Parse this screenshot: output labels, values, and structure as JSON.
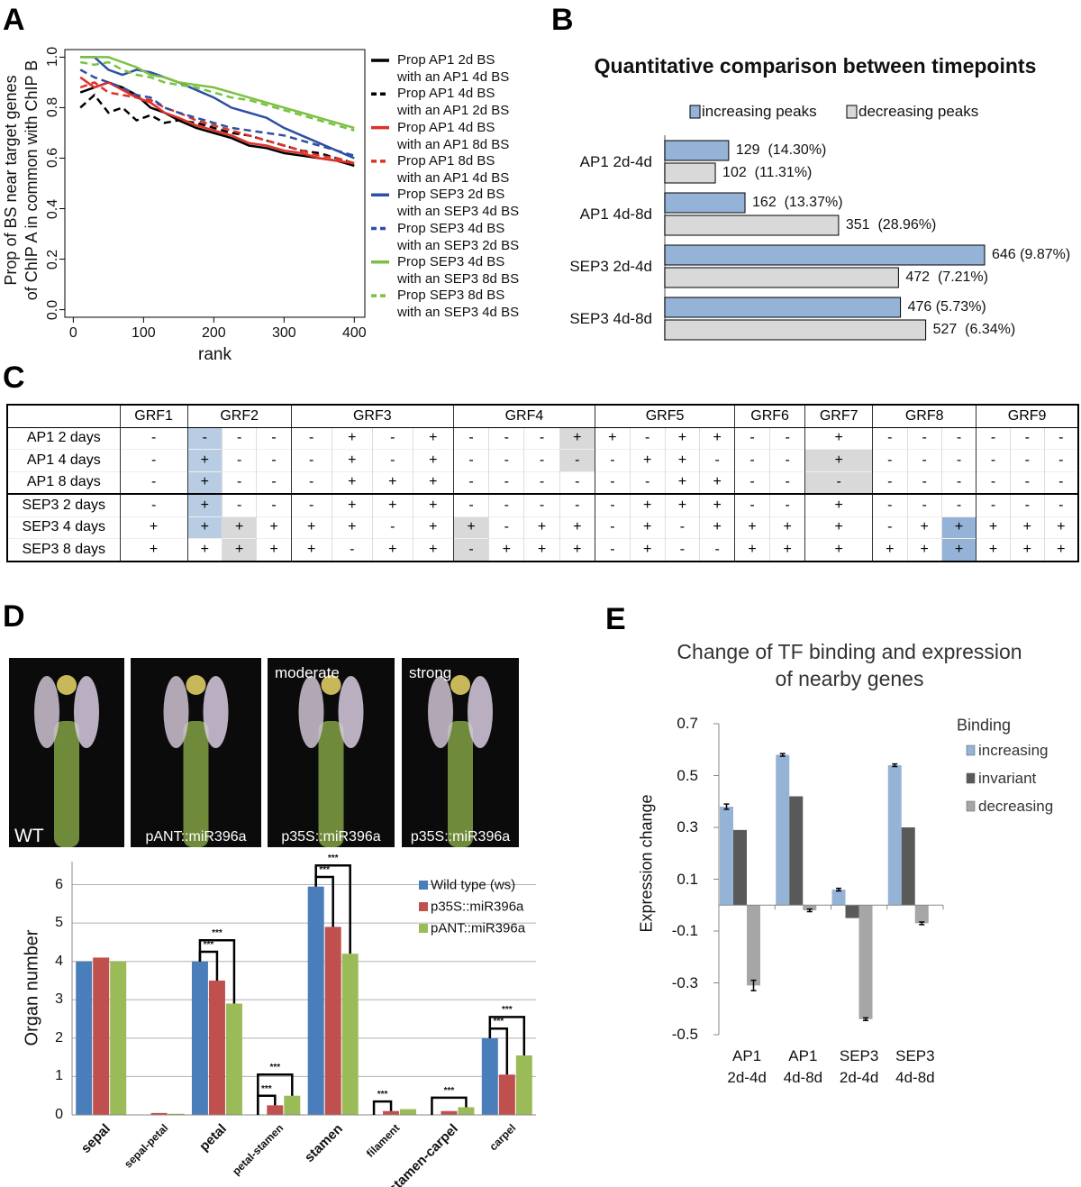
{
  "panel_labels": [
    "A",
    "B",
    "C",
    "D",
    "E"
  ],
  "chart_data": [
    {
      "type": "line",
      "xlabel": "rank",
      "ylabel": "Prop of BS near target genes\nof ChIP A in common with ChIP B",
      "x": [
        10,
        30,
        50,
        70,
        90,
        110,
        130,
        150,
        175,
        200,
        225,
        250,
        275,
        300,
        325,
        350,
        375,
        400
      ],
      "xlim": [
        -12,
        415
      ],
      "xticks": [
        0,
        100,
        200,
        300,
        400
      ],
      "ylim": [
        -0.03,
        1.03
      ],
      "yticks": [
        {
          "value": 0,
          "label": "0.0"
        },
        0.2,
        0.4,
        0.6,
        0.8,
        {
          "value": 1,
          "label": "1.0"
        }
      ],
      "series": [
        {
          "name": "Prop AP1 2d BS\nwith an AP1 4d BS",
          "color": "#000000",
          "dash": false,
          "values": [
            0.86,
            0.88,
            0.9,
            0.88,
            0.85,
            0.8,
            0.78,
            0.75,
            0.72,
            0.7,
            0.68,
            0.65,
            0.64,
            0.62,
            0.61,
            0.6,
            0.59,
            0.57
          ]
        },
        {
          "name": "Prop AP1 4d BS\nwith an AP1 2d BS",
          "color": "#000000",
          "dash": true,
          "values": [
            0.8,
            0.85,
            0.78,
            0.8,
            0.75,
            0.77,
            0.74,
            0.75,
            0.74,
            0.72,
            0.7,
            0.69,
            0.67,
            0.65,
            0.63,
            0.62,
            0.6,
            0.58
          ]
        },
        {
          "name": "Prop AP1 4d BS\nwith an AP1 8d BS",
          "color": "#e0302a",
          "dash": false,
          "values": [
            0.92,
            0.88,
            0.9,
            0.87,
            0.84,
            0.82,
            0.78,
            0.76,
            0.73,
            0.71,
            0.69,
            0.66,
            0.65,
            0.63,
            0.62,
            0.6,
            0.59,
            0.58
          ]
        },
        {
          "name": "Prop AP1 8d BS\nwith an AP1 4d BS",
          "color": "#e0302a",
          "dash": true,
          "values": [
            0.88,
            0.9,
            0.86,
            0.85,
            0.84,
            0.83,
            0.8,
            0.78,
            0.75,
            0.73,
            0.71,
            0.69,
            0.67,
            0.65,
            0.63,
            0.61,
            0.6,
            0.58
          ]
        },
        {
          "name": "Prop SEP3 2d BS\nwith an SEP3 4d BS",
          "color": "#2e4fa3",
          "dash": false,
          "values": [
            1.0,
            1.0,
            0.95,
            0.93,
            0.95,
            0.94,
            0.92,
            0.9,
            0.87,
            0.84,
            0.8,
            0.78,
            0.76,
            0.72,
            0.69,
            0.66,
            0.63,
            0.6
          ]
        },
        {
          "name": "Prop SEP3 4d BS\nwith an SEP3 2d BS",
          "color": "#2e4fa3",
          "dash": true,
          "values": [
            0.95,
            0.92,
            0.9,
            0.88,
            0.85,
            0.84,
            0.8,
            0.78,
            0.76,
            0.74,
            0.72,
            0.71,
            0.7,
            0.69,
            0.67,
            0.65,
            0.63,
            0.61
          ]
        },
        {
          "name": "Prop SEP3 4d BS\nwith an SEP3 8d BS",
          "color": "#7ac143",
          "dash": false,
          "values": [
            1.0,
            1.0,
            1.0,
            0.98,
            0.96,
            0.93,
            0.92,
            0.9,
            0.89,
            0.88,
            0.86,
            0.84,
            0.82,
            0.8,
            0.78,
            0.76,
            0.74,
            0.72
          ]
        },
        {
          "name": "Prop SEP3 8d BS\nwith an SEP3 4d BS",
          "color": "#7ac143",
          "dash": true,
          "values": [
            0.98,
            0.97,
            0.98,
            0.95,
            0.93,
            0.92,
            0.9,
            0.89,
            0.88,
            0.86,
            0.84,
            0.83,
            0.81,
            0.79,
            0.77,
            0.75,
            0.73,
            0.71
          ]
        }
      ]
    },
    {
      "type": "hbar",
      "title": "Quantitative comparison between timepoints",
      "categories": [
        "AP1 2d-4d",
        "AP1 4d-8d",
        "SEP3 2d-4d",
        "SEP3 4d-8d"
      ],
      "series": [
        {
          "name": "increasing peaks",
          "color": "#95b3d7",
          "values": [
            129,
            162,
            646,
            476
          ],
          "value_labels": [
            "129  (14.30%)",
            "162  (13.37%)",
            "646 (9.87%)",
            "476 (5.73%)"
          ]
        },
        {
          "name": "decreasing peaks",
          "color": "#d9d9d9",
          "values": [
            102,
            351,
            472,
            527
          ],
          "value_labels": [
            "102  (11.31%)",
            "351  (28.96%)",
            "472  (7.21%)",
            "527  (6.34%)"
          ]
        }
      ]
    },
    {
      "type": "bar",
      "ylabel": "Organ number",
      "categories": [
        "sepal",
        "sepal-petal",
        "petal",
        "petal-stamen",
        "stamen",
        "filament",
        "stamen-carpel",
        "carpel"
      ],
      "ylim": [
        0,
        6.6
      ],
      "yticks": [
        0,
        1,
        2,
        3,
        4,
        5,
        6
      ],
      "grid": true,
      "series": [
        {
          "name": "Wild type (ws)",
          "color": "#4a7ebb",
          "values": [
            4,
            0,
            4,
            0,
            5.95,
            0,
            0,
            2
          ]
        },
        {
          "name": "p35S::miR396a",
          "color": "#c0504d",
          "values": [
            4.1,
            0.05,
            3.5,
            0.25,
            4.9,
            0.1,
            0.1,
            1.05
          ]
        },
        {
          "name": "pANT::miR396a",
          "color": "#9bbb59",
          "values": [
            4,
            0.03,
            2.9,
            0.5,
            4.2,
            0.15,
            0.2,
            1.55
          ]
        }
      ],
      "significance": [
        {
          "category": "petal",
          "from": "Wild type (ws)",
          "to": "p35S::miR396a",
          "label": "***"
        },
        {
          "category": "petal",
          "from": "Wild type (ws)",
          "to": "pANT::miR396a",
          "label": "***"
        },
        {
          "category": "petal-stamen",
          "from": "Wild type (ws)",
          "to": "p35S::miR396a",
          "label": "***"
        },
        {
          "category": "petal-stamen",
          "from": "Wild type (ws)",
          "to": "pANT::miR396a",
          "label": "***"
        },
        {
          "category": "stamen",
          "from": "Wild type (ws)",
          "to": "p35S::miR396a",
          "label": "***"
        },
        {
          "category": "stamen",
          "from": "Wild type (ws)",
          "to": "pANT::miR396a",
          "label": "***"
        },
        {
          "category": "filament",
          "from": "Wild type (ws)",
          "to": "p35S::miR396a",
          "label": "***"
        },
        {
          "category": "stamen-carpel",
          "from": "Wild type (ws)",
          "to": "pANT::miR396a",
          "label": "***"
        },
        {
          "category": "carpel",
          "from": "Wild type (ws)",
          "to": "p35S::miR396a",
          "label": "***"
        },
        {
          "category": "carpel",
          "from": "Wild type (ws)",
          "to": "pANT::miR396a",
          "label": "***"
        }
      ]
    },
    {
      "type": "bar",
      "title": "Change of TF binding and expression\nof nearby genes",
      "ylabel": "Expression change",
      "legend_title": "Binding",
      "categories": [
        "AP1\n2d-4d",
        "AP1\n4d-8d",
        "SEP3\n2d-4d",
        "SEP3\n4d-8d"
      ],
      "ylim": [
        -0.5,
        0.7
      ],
      "yticks": [
        0.7,
        0.5,
        0.3,
        0.1,
        -0.1,
        -0.3,
        -0.5
      ],
      "series": [
        {
          "name": "increasing",
          "color": "#95b3d7",
          "values": [
            0.38,
            0.58,
            0.06,
            0.54
          ],
          "errors": [
            0.01,
            0.005,
            0.005,
            0.005
          ]
        },
        {
          "name": "invariant",
          "color": "#595959",
          "values": [
            0.29,
            0.42,
            -0.05,
            0.3
          ]
        },
        {
          "name": "decreasing",
          "color": "#a6a6a6",
          "values": [
            -0.31,
            -0.02,
            -0.44,
            -0.07
          ],
          "errors": [
            0.02,
            0.005,
            0.005,
            0.005
          ]
        }
      ]
    }
  ],
  "table": {
    "header": [
      "GRF1",
      "GRF2",
      "GRF3",
      "GRF4",
      "GRF5",
      "GRF6",
      "GRF7",
      "GRF8",
      "GRF9"
    ],
    "spans": [
      1,
      3,
      4,
      4,
      4,
      2,
      1,
      3,
      3
    ],
    "rows": [
      {
        "label": "AP1 2 days",
        "cells": [
          "-",
          "-",
          "-",
          "-",
          "-",
          "+",
          "-",
          "+",
          "-",
          "-",
          "-",
          "+",
          "+",
          "-",
          "+",
          "+",
          "-",
          "-",
          "+",
          "-",
          "-",
          "-",
          "-",
          "-",
          "-"
        ]
      },
      {
        "label": "AP1 4 days",
        "cells": [
          "-",
          "+",
          "-",
          "-",
          "-",
          "+",
          "-",
          "+",
          "-",
          "-",
          "-",
          "-",
          "-",
          "+",
          "+",
          "-",
          "-",
          "-",
          "+",
          "-",
          "-",
          "-",
          "-",
          "-",
          "-"
        ]
      },
      {
        "label": "AP1 8 days",
        "cells": [
          "-",
          "+",
          "-",
          "-",
          "-",
          "+",
          "+",
          "+",
          "-",
          "-",
          "-",
          "-",
          "-",
          "-",
          "+",
          "+",
          "-",
          "-",
          "-",
          "-",
          "-",
          "-",
          "-",
          "-",
          "-"
        ]
      },
      {
        "label": "SEP3 2 days",
        "cells": [
          "-",
          "+",
          "-",
          "-",
          "-",
          "+",
          "+",
          "+",
          "-",
          "-",
          "-",
          "-",
          "-",
          "+",
          "+",
          "+",
          "-",
          "-",
          "+",
          "-",
          "-",
          "-",
          "-",
          "-",
          "-"
        ]
      },
      {
        "label": "SEP3 4 days",
        "cells": [
          "+",
          "+",
          "+",
          "+",
          "+",
          "+",
          "-",
          "+",
          "+",
          "-",
          "+",
          "+",
          "-",
          "+",
          "-",
          "+",
          "+",
          "+",
          "+",
          "-",
          "+",
          "+",
          "+",
          "+",
          "+"
        ]
      },
      {
        "label": "SEP3 8 days",
        "cells": [
          "+",
          "+",
          "+",
          "+",
          "+",
          "-",
          "+",
          "+",
          "-",
          "+",
          "+",
          "+",
          "-",
          "+",
          "-",
          "-",
          "+",
          "+",
          "+",
          "+",
          "+",
          "+",
          "+",
          "+",
          "+"
        ]
      }
    ],
    "highlights": [
      {
        "row": 0,
        "col": 1,
        "color": "#b8cce4"
      },
      {
        "row": 1,
        "col": 1,
        "color": "#b8cce4"
      },
      {
        "row": 2,
        "col": 1,
        "color": "#b8cce4"
      },
      {
        "row": 3,
        "col": 1,
        "color": "#b8cce4"
      },
      {
        "row": 4,
        "col": 1,
        "color": "#b8cce4"
      },
      {
        "row": 4,
        "col": 2,
        "color": "#d9d9d9"
      },
      {
        "row": 5,
        "col": 2,
        "color": "#d9d9d9"
      },
      {
        "row": 0,
        "col": 11,
        "color": "#d9d9d9"
      },
      {
        "row": 1,
        "col": 11,
        "color": "#d9d9d9"
      },
      {
        "row": 4,
        "col": 8,
        "color": "#d9d9d9"
      },
      {
        "row": 5,
        "col": 8,
        "color": "#d9d9d9"
      },
      {
        "row": 1,
        "col": 18,
        "color": "#d9d9d9"
      },
      {
        "row": 2,
        "col": 18,
        "color": "#d9d9d9"
      },
      {
        "row": 4,
        "col": 21,
        "color": "#95b3d7"
      },
      {
        "row": 5,
        "col": 21,
        "color": "#95b3d7"
      }
    ]
  },
  "photos": [
    {
      "label": "WT"
    },
    {
      "label": "pANT::miR396a"
    },
    {
      "title": "moderate",
      "label": "p35S::miR396a"
    },
    {
      "title": "strong",
      "label": "p35S::miR396a"
    }
  ]
}
